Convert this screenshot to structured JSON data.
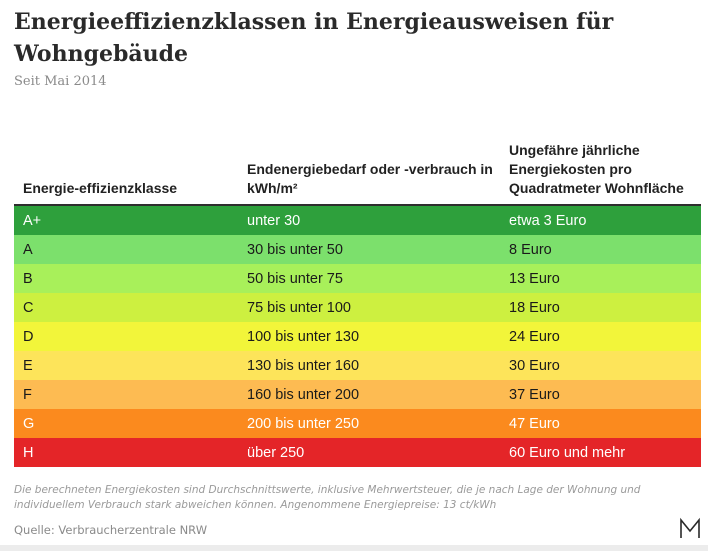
{
  "title": "Energieeffizienzklassen in Energieausweisen für Wohngebäude",
  "subtitle": "Seit Mai 2014",
  "chart_data": {
    "type": "table",
    "columns": [
      "Energie-effizienzklasse",
      "Endenergiebedarf oder -verbrauch in kWh/m²",
      "Ungefähre jährliche Energiekosten pro Quadratmeter Wohnfläche"
    ],
    "rows": [
      {
        "klasse": "A+",
        "verbrauch": "unter 30",
        "kosten": "etwa 3 Euro",
        "color": "#2ea03c",
        "text_color": "#ffffff"
      },
      {
        "klasse": "A",
        "verbrauch": "30 bis unter 50",
        "kosten": "8 Euro",
        "color": "#7ce06c",
        "text_color": "#1a1a1a"
      },
      {
        "klasse": "B",
        "verbrauch": "50 bis unter 75",
        "kosten": "13 Euro",
        "color": "#a8f05a",
        "text_color": "#1a1a1a"
      },
      {
        "klasse": "C",
        "verbrauch": "75 bis unter 100",
        "kosten": "18 Euro",
        "color": "#cdf040",
        "text_color": "#1a1a1a"
      },
      {
        "klasse": "D",
        "verbrauch": "100 bis unter 130",
        "kosten": "24 Euro",
        "color": "#f2f53a",
        "text_color": "#1a1a1a"
      },
      {
        "klasse": "E",
        "verbrauch": "130 bis unter 160",
        "kosten": "30 Euro",
        "color": "#fde45a",
        "text_color": "#1a1a1a"
      },
      {
        "klasse": "F",
        "verbrauch": "160 bis unter 200",
        "kosten": "37 Euro",
        "color": "#fdbb52",
        "text_color": "#1a1a1a"
      },
      {
        "klasse": "G",
        "verbrauch": "200 bis unter 250",
        "kosten": "47 Euro",
        "color": "#fb8a1e",
        "text_color": "#ffffff"
      },
      {
        "klasse": "H",
        "verbrauch": "über 250",
        "kosten": "60 Euro und mehr",
        "color": "#e42528",
        "text_color": "#ffffff"
      }
    ]
  },
  "footnote": "Die berechneten Energiekosten sind Durchschnittswerte, inklusive Mehrwertsteuer, die je nach Lage der Wohnung und individuellem Verbrauch stark abweichen können. Angenommene Energiepreise: 13 ct/kWh",
  "source": "Quelle: Verbraucherzentrale NRW",
  "logo_letter": "M"
}
